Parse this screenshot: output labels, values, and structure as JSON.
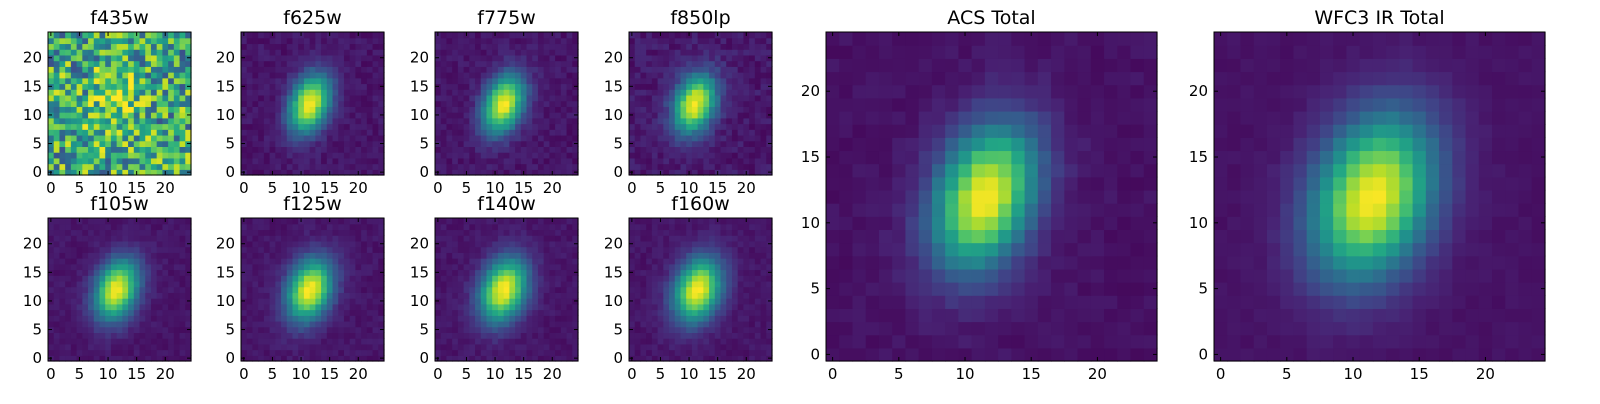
{
  "chart_data": [
    {
      "type": "heatmap",
      "title": "f435w",
      "xticks": [
        "0",
        "5",
        "10",
        "15",
        "20"
      ],
      "yticks": [
        "0",
        "5",
        "10",
        "15",
        "20"
      ],
      "xlim": [
        0,
        25
      ],
      "ylim": [
        0,
        25
      ],
      "grid": "25x25",
      "peak": [
        11.5,
        13
      ],
      "sigma": [
        2.8,
        4.2
      ],
      "rotation_deg": -20,
      "background": 0.6,
      "noise": 0.35,
      "colormap": "viridis",
      "grid_lines": false,
      "legend": "none"
    },
    {
      "type": "heatmap",
      "title": "f625w",
      "xticks": [
        "0",
        "5",
        "10",
        "15",
        "20"
      ],
      "yticks": [
        "0",
        "5",
        "10",
        "15",
        "20"
      ],
      "xlim": [
        0,
        25
      ],
      "ylim": [
        0,
        25
      ],
      "grid": "25x25",
      "peak": [
        12,
        12.5
      ],
      "sigma": [
        2.3,
        3.7
      ],
      "rotation_deg": -20,
      "background": 0.06,
      "noise": 0.04,
      "colormap": "viridis",
      "grid_lines": false,
      "legend": "none"
    },
    {
      "type": "heatmap",
      "title": "f775w",
      "xticks": [
        "0",
        "5",
        "10",
        "15",
        "20"
      ],
      "yticks": [
        "0",
        "5",
        "10",
        "15",
        "20"
      ],
      "xlim": [
        0,
        25
      ],
      "ylim": [
        0,
        25
      ],
      "grid": "25x25",
      "peak": [
        12,
        12.5
      ],
      "sigma": [
        2.3,
        3.7
      ],
      "rotation_deg": -20,
      "background": 0.06,
      "noise": 0.04,
      "colormap": "viridis",
      "grid_lines": false,
      "legend": "none"
    },
    {
      "type": "heatmap",
      "title": "f850lp",
      "xticks": [
        "0",
        "5",
        "10",
        "15",
        "20"
      ],
      "yticks": [
        "0",
        "5",
        "10",
        "15",
        "20"
      ],
      "xlim": [
        0,
        25
      ],
      "ylim": [
        0,
        25
      ],
      "grid": "25x25",
      "peak": [
        11.5,
        12.5
      ],
      "sigma": [
        2.4,
        3.7
      ],
      "rotation_deg": -20,
      "background": 0.07,
      "noise": 0.05,
      "colormap": "viridis",
      "grid_lines": false,
      "legend": "none"
    },
    {
      "type": "heatmap",
      "title": "f105w",
      "xticks": [
        "0",
        "5",
        "10",
        "15",
        "20"
      ],
      "yticks": [
        "0",
        "5",
        "10",
        "15",
        "20"
      ],
      "xlim": [
        0,
        25
      ],
      "ylim": [
        0,
        25
      ],
      "grid": "25x25",
      "peak": [
        12,
        12.5
      ],
      "sigma": [
        2.5,
        3.8
      ],
      "rotation_deg": -20,
      "background": 0.06,
      "noise": 0.03,
      "colormap": "viridis",
      "grid_lines": false,
      "legend": "none"
    },
    {
      "type": "heatmap",
      "title": "f125w",
      "xticks": [
        "0",
        "5",
        "10",
        "15",
        "20"
      ],
      "yticks": [
        "0",
        "5",
        "10",
        "15",
        "20"
      ],
      "xlim": [
        0,
        25
      ],
      "ylim": [
        0,
        25
      ],
      "grid": "25x25",
      "peak": [
        12,
        12.5
      ],
      "sigma": [
        2.6,
        3.9
      ],
      "rotation_deg": -20,
      "background": 0.06,
      "noise": 0.03,
      "colormap": "viridis",
      "grid_lines": false,
      "legend": "none"
    },
    {
      "type": "heatmap",
      "title": "f140w",
      "xticks": [
        "0",
        "5",
        "10",
        "15",
        "20"
      ],
      "yticks": [
        "0",
        "5",
        "10",
        "15",
        "20"
      ],
      "xlim": [
        0,
        25
      ],
      "ylim": [
        0,
        25
      ],
      "grid": "25x25",
      "peak": [
        12,
        12.5
      ],
      "sigma": [
        2.7,
        4.0
      ],
      "rotation_deg": -20,
      "background": 0.06,
      "noise": 0.03,
      "colormap": "viridis",
      "grid_lines": false,
      "legend": "none"
    },
    {
      "type": "heatmap",
      "title": "f160w",
      "xticks": [
        "0",
        "5",
        "10",
        "15",
        "20"
      ],
      "yticks": [
        "0",
        "5",
        "10",
        "15",
        "20"
      ],
      "xlim": [
        0,
        25
      ],
      "ylim": [
        0,
        25
      ],
      "grid": "25x25",
      "peak": [
        12,
        12.5
      ],
      "sigma": [
        2.7,
        4.0
      ],
      "rotation_deg": -20,
      "background": 0.06,
      "noise": 0.03,
      "colormap": "viridis",
      "grid_lines": false,
      "legend": "none"
    },
    {
      "type": "heatmap",
      "title": "ACS Total",
      "xticks": [
        "0",
        "5",
        "10",
        "15",
        "20"
      ],
      "yticks": [
        "0",
        "5",
        "10",
        "15",
        "20"
      ],
      "xlim": [
        0,
        25
      ],
      "ylim": [
        0,
        25
      ],
      "grid": "25x25",
      "peak": [
        12,
        12.5
      ],
      "sigma": [
        2.5,
        3.9
      ],
      "rotation_deg": -20,
      "background": 0.05,
      "noise": 0.025,
      "colormap": "viridis",
      "grid_lines": false,
      "legend": "none"
    },
    {
      "type": "heatmap",
      "title": "WFC3 IR Total",
      "xticks": [
        "0",
        "5",
        "10",
        "15",
        "20"
      ],
      "yticks": [
        "0",
        "5",
        "10",
        "15",
        "20"
      ],
      "xlim": [
        0,
        25
      ],
      "ylim": [
        0,
        25
      ],
      "grid": "25x25",
      "peak": [
        12,
        12.5
      ],
      "sigma": [
        3.0,
        4.4
      ],
      "rotation_deg": -20,
      "background": 0.05,
      "noise": 0.015,
      "colormap": "viridis",
      "grid_lines": false,
      "legend": "none"
    }
  ]
}
